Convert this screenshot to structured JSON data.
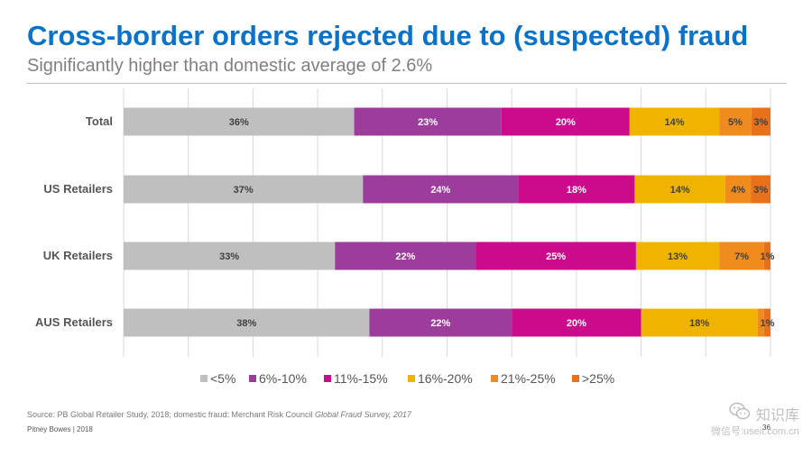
{
  "header": {
    "title": "Cross-border orders rejected due to (suspected) fraud",
    "subtitle": "Significantly higher than domestic average of 2.6%"
  },
  "footer": {
    "source_prefix": "Source: PB Global Retailer Study, 2018; domestic fraud: Merchant Risk Council ",
    "source_italic": "Global Fraud Survey, 2017",
    "company": "Pitney Bowes | 2018",
    "page_number": "36"
  },
  "watermark": {
    "name": "知识库",
    "sub": "微信号:useit.com.cn",
    "icon": "wechat-icon"
  },
  "chart_data": {
    "type": "bar",
    "orientation": "horizontal",
    "stacked": true,
    "categories": [
      "Total",
      "US Retailers",
      "UK Retailers",
      "AUS Retailers"
    ],
    "series": [
      {
        "name": "<5%",
        "color": "#bfbfbf",
        "values": [
          36,
          37,
          33,
          38
        ]
      },
      {
        "name": "6%-10%",
        "color": "#9c3d9c",
        "values": [
          23,
          24,
          22,
          22
        ]
      },
      {
        "name": "11%-15%",
        "color": "#cc0a8c",
        "values": [
          20,
          18,
          25,
          20
        ]
      },
      {
        "name": "16%-20%",
        "color": "#f0b400",
        "values": [
          14,
          14,
          13,
          18
        ]
      },
      {
        "name": "21%-25%",
        "color": "#f08c1e",
        "values": [
          5,
          4,
          7,
          1
        ]
      },
      {
        "name": ">25%",
        "color": "#e8711a",
        "values": [
          3,
          3,
          1,
          1
        ]
      }
    ],
    "data_labels": [
      [
        "36%",
        "23%",
        "20%",
        "14%",
        "5%",
        "3%"
      ],
      [
        "37%",
        "24%",
        "18%",
        "14%",
        "4%",
        "3%"
      ],
      [
        "33%",
        "22%",
        "25%",
        "13%",
        "7%",
        "1%"
      ],
      [
        "38%",
        "22%",
        "20%",
        "18%",
        "",
        "1%"
      ]
    ],
    "xlim": [
      0,
      100
    ],
    "grid": true,
    "legend_position": "bottom"
  }
}
